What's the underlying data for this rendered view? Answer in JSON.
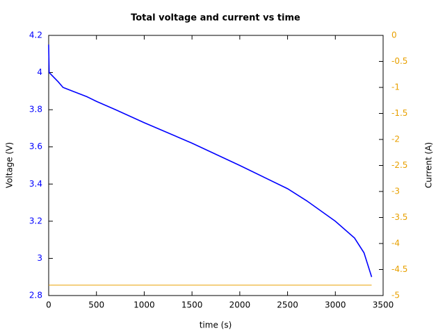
{
  "chart_data": {
    "type": "line",
    "title": "Total voltage and current vs time",
    "xlabel": "time (s)",
    "ylabel": "Voltage (V)",
    "y2label": "Current (A)",
    "xlim": [
      0,
      3500
    ],
    "xticks": [
      0,
      500,
      1000,
      1500,
      2000,
      2500,
      3000,
      3500
    ],
    "ylim": [
      2.8,
      4.2
    ],
    "yticks": [
      2.8,
      3,
      3.2,
      3.4,
      3.6,
      3.8,
      4,
      4.2
    ],
    "y2lim": [
      -5,
      0
    ],
    "y2ticks": [
      -5,
      -4.5,
      -4,
      -3.5,
      -3,
      -2.5,
      -2,
      -1.5,
      -1,
      -0.5,
      0
    ],
    "series": [
      {
        "color": "#0000ff",
        "x": [
          0,
          5,
          100,
          150,
          250,
          400,
          500,
          700,
          1000,
          1500,
          2000,
          2500,
          2700,
          3000,
          3200,
          3300,
          3380
        ],
        "values": [
          4.15,
          4.0,
          3.95,
          3.92,
          3.9,
          3.87,
          3.845,
          3.8,
          3.73,
          3.62,
          3.5,
          3.375,
          3.31,
          3.2,
          3.11,
          3.03,
          2.9
        ]
      },
      {
        "color": "#e8a000",
        "axis": "y2",
        "x": [
          0,
          3380
        ],
        "values": [
          -4.8,
          -4.8
        ]
      }
    ]
  }
}
